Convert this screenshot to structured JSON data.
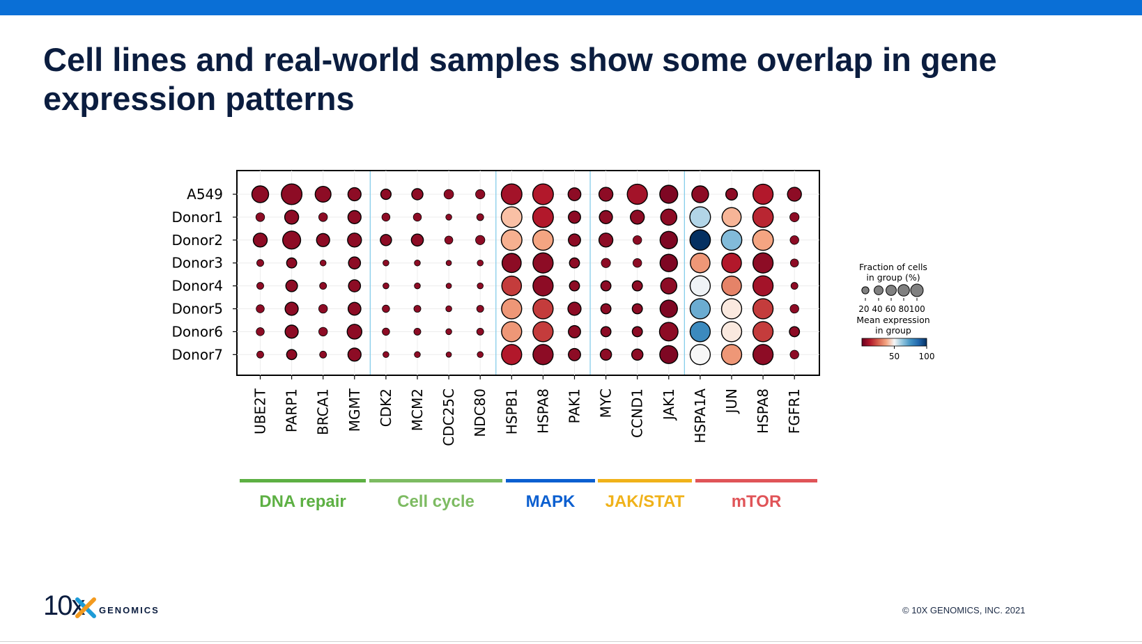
{
  "slide": {
    "title": "Cell lines and real-world samples show some overlap in gene expression patterns",
    "brand_color": "#0a6fd6",
    "footer": {
      "logo_text": "10x",
      "logo_word": "GENOMICS",
      "copyright": "© 10X GENOMICS, INC. 2021"
    }
  },
  "chart_data": {
    "type": "dotplot",
    "rows": [
      "A549",
      "Donor1",
      "Donor2",
      "Donor3",
      "Donor4",
      "Donor5",
      "Donor6",
      "Donor7"
    ],
    "genes": [
      "UBE2T",
      "PARP1",
      "BRCA1",
      "MGMT",
      "CDK2",
      "MCM2",
      "CDC25C",
      "NDC80",
      "HSPB1",
      "HSPA8",
      "PAK1",
      "MYC",
      "CCND1",
      "JAK1",
      "HSPA1A",
      "JUN",
      "HSPA8",
      "FGFR1"
    ],
    "groups": [
      {
        "name": "DNA repair",
        "start": 0,
        "end": 3,
        "color": "#5db043"
      },
      {
        "name": "Cell cycle",
        "start": 4,
        "end": 7,
        "color": "#7dbb62"
      },
      {
        "name": "MAPK",
        "start": 8,
        "end": 10,
        "color": "#0b5fd0"
      },
      {
        "name": "JAK/STAT",
        "start": 11,
        "end": 13,
        "color": "#f0b21a"
      },
      {
        "name": "mTOR",
        "start": 14,
        "end": 17,
        "color": "#e05458"
      }
    ],
    "fraction_pct": [
      [
        55,
        90,
        48,
        30,
        16,
        20,
        13,
        12,
        90,
        90,
        28,
        35,
        85,
        65,
        55,
        22,
        85,
        35
      ],
      [
        10,
        35,
        10,
        30,
        8,
        8,
        3,
        5,
        90,
        90,
        25,
        30,
        35,
        50,
        90,
        75,
        88,
        12
      ],
      [
        35,
        65,
        30,
        35,
        20,
        24,
        8,
        12,
        90,
        88,
        25,
        35,
        10,
        60,
        88,
        88,
        90,
        10
      ],
      [
        5,
        15,
        3,
        24,
        3,
        3,
        2,
        3,
        75,
        85,
        15,
        12,
        10,
        60,
        80,
        80,
        85,
        8
      ],
      [
        5,
        22,
        5,
        24,
        3,
        3,
        2,
        3,
        80,
        85,
        15,
        15,
        15,
        50,
        85,
        80,
        85,
        5
      ],
      [
        8,
        30,
        10,
        28,
        6,
        5,
        3,
        5,
        85,
        85,
        30,
        15,
        15,
        60,
        85,
        85,
        85,
        10
      ],
      [
        8,
        30,
        10,
        40,
        6,
        5,
        3,
        5,
        85,
        85,
        25,
        15,
        15,
        70,
        85,
        85,
        85,
        15
      ],
      [
        5,
        15,
        5,
        30,
        3,
        3,
        2,
        3,
        85,
        85,
        25,
        20,
        20,
        65,
        85,
        85,
        85,
        10
      ]
    ],
    "mean_expression": [
      [
        5,
        5,
        5,
        5,
        5,
        5,
        5,
        5,
        8,
        10,
        5,
        5,
        8,
        3,
        5,
        5,
        10,
        5
      ],
      [
        5,
        5,
        5,
        5,
        5,
        5,
        5,
        5,
        35,
        10,
        5,
        5,
        5,
        5,
        65,
        33,
        12,
        5
      ],
      [
        5,
        5,
        5,
        5,
        5,
        5,
        5,
        5,
        32,
        30,
        5,
        5,
        5,
        3,
        100,
        72,
        30,
        5
      ],
      [
        5,
        5,
        5,
        5,
        5,
        5,
        5,
        5,
        5,
        5,
        5,
        5,
        5,
        3,
        28,
        10,
        5,
        5
      ],
      [
        5,
        5,
        5,
        5,
        5,
        5,
        5,
        5,
        15,
        5,
        5,
        5,
        5,
        5,
        52,
        25,
        8,
        5
      ],
      [
        5,
        5,
        5,
        5,
        5,
        5,
        5,
        5,
        28,
        15,
        5,
        5,
        5,
        3,
        75,
        45,
        15,
        5
      ],
      [
        5,
        5,
        5,
        5,
        5,
        5,
        5,
        5,
        28,
        15,
        5,
        5,
        5,
        5,
        82,
        45,
        15,
        5
      ],
      [
        5,
        5,
        5,
        5,
        5,
        5,
        5,
        5,
        10,
        5,
        5,
        5,
        5,
        3,
        50,
        28,
        5,
        5
      ]
    ],
    "colormap": "RdBu",
    "colorbar": {
      "min": 0,
      "max": 100,
      "ticks": [
        50,
        100
      ]
    },
    "legend": {
      "size_title_1": "Fraction of cells",
      "size_title_2": "in group (%)",
      "size_values": [
        20,
        40,
        60,
        80,
        100
      ],
      "size_tick_labels": "20 40 60 80100",
      "color_title_1": "Mean expression",
      "color_title_2": "in group",
      "placement": "right"
    }
  }
}
